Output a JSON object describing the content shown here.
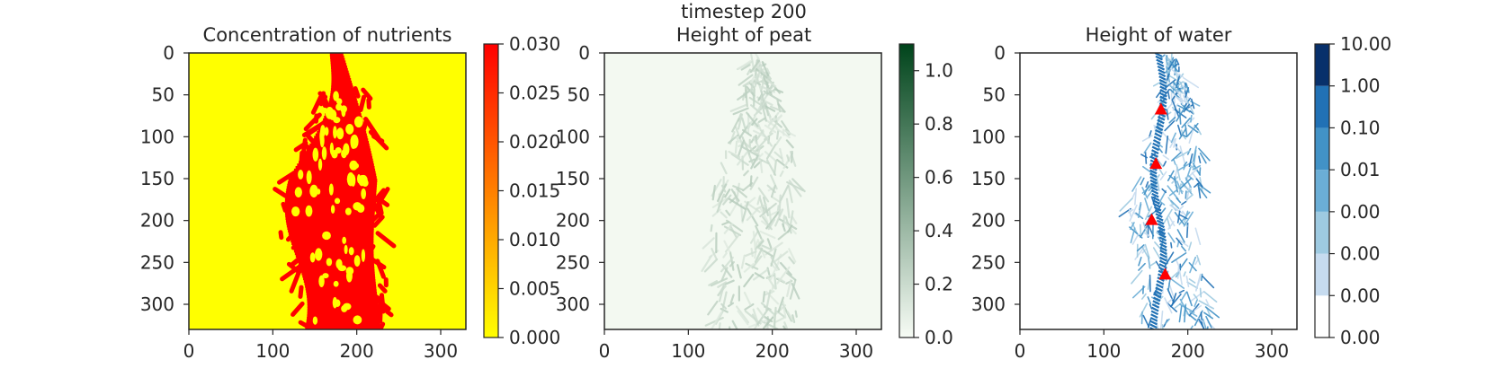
{
  "figure": {
    "suptitle": "timestep 200"
  },
  "chart_data": [
    {
      "type": "heatmap",
      "title": "Concentration of nutrients",
      "xlim": [
        0,
        330
      ],
      "ylim": [
        330,
        0
      ],
      "xticks": [
        "0",
        "100",
        "200",
        "300"
      ],
      "yticks": [
        "0",
        "50",
        "100",
        "150",
        "200",
        "250",
        "300"
      ],
      "colormap": {
        "name": "autumn_r",
        "low": "#ffff00",
        "high": "#ff0000"
      },
      "colorbar": {
        "range": [
          0.0,
          0.03
        ],
        "ticks": [
          "0.000",
          "0.005",
          "0.010",
          "0.015",
          "0.020",
          "0.025",
          "0.030"
        ],
        "scale": "linear"
      },
      "background_value": 0.0,
      "channel_value": 0.03,
      "channel_extent": {
        "x_min": 125,
        "x_max": 238,
        "y_top": 0,
        "y_bottom": 330
      }
    },
    {
      "type": "heatmap",
      "title": "Height of peat",
      "xlim": [
        0,
        330
      ],
      "ylim": [
        330,
        0
      ],
      "xticks": [
        "0",
        "100",
        "200",
        "300"
      ],
      "yticks": [
        "0",
        "50",
        "100",
        "150",
        "200",
        "250",
        "300"
      ],
      "colormap": {
        "name": "Greens",
        "low": "#f7fcf5",
        "high": "#00441b"
      },
      "colorbar": {
        "range": [
          0.0,
          1.1
        ],
        "ticks": [
          "0.0",
          "0.2",
          "0.4",
          "0.6",
          "0.8",
          "1.0"
        ],
        "scale": "linear"
      },
      "background_value": 0.02,
      "peat_value_range": [
        0.1,
        0.3
      ],
      "channel_extent": {
        "x_min": 130,
        "x_max": 232,
        "y_top": 0,
        "y_bottom": 330
      }
    },
    {
      "type": "heatmap",
      "title": "Height of water",
      "xlim": [
        0,
        330
      ],
      "ylim": [
        330,
        0
      ],
      "xticks": [
        "0",
        "100",
        "200",
        "300"
      ],
      "yticks": [
        "0",
        "50",
        "100",
        "150",
        "200",
        "250",
        "300"
      ],
      "colormap": {
        "name": "Blues (discrete)",
        "levels": [
          "#ffffff",
          "#c6dbef",
          "#9ecae1",
          "#6baed6",
          "#4292c6",
          "#2171b5",
          "#08306b"
        ]
      },
      "colorbar": {
        "ticks": [
          "0.00",
          "0.00",
          "0.00",
          "0.00",
          "0.01",
          "0.10",
          "1.00",
          "10.00"
        ],
        "scale": "log-discrete"
      },
      "channel_extent": {
        "x_min": 135,
        "x_max": 235,
        "y_top": 0,
        "y_bottom": 330
      },
      "markers": {
        "shape": "triangle",
        "color": "#ff0000",
        "points": [
          {
            "x": 168,
            "y": 68
          },
          {
            "x": 162,
            "y": 133
          },
          {
            "x": 157,
            "y": 200
          },
          {
            "x": 173,
            "y": 265
          }
        ]
      }
    }
  ]
}
